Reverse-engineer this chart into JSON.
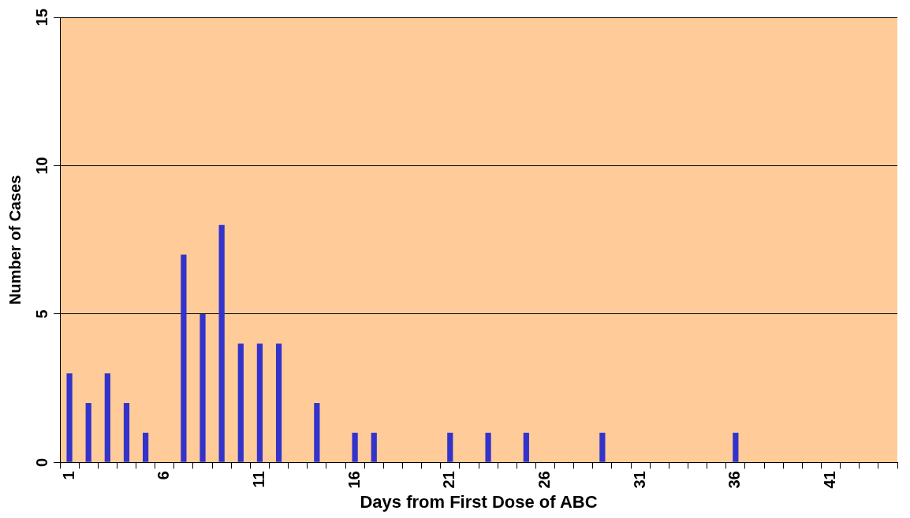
{
  "chart_data": {
    "type": "bar",
    "xlabel": "Days from First Dose of ABC",
    "ylabel": "Number of Cases",
    "categories": [
      "1",
      null,
      null,
      null,
      null,
      "6",
      null,
      null,
      null,
      null,
      "11",
      null,
      null,
      null,
      null,
      "16",
      null,
      null,
      null,
      null,
      "21",
      null,
      null,
      null,
      null,
      "26",
      null,
      null,
      null,
      null,
      "31",
      null,
      null,
      null,
      null,
      "36",
      null,
      null,
      null,
      null,
      "41",
      null,
      null,
      null
    ],
    "values": [
      3,
      2,
      3,
      2,
      1,
      0,
      7,
      5,
      8,
      4,
      4,
      4,
      0,
      2,
      0,
      1,
      1,
      0,
      0,
      0,
      1,
      0,
      1,
      0,
      1,
      0,
      0,
      0,
      1,
      0,
      0,
      0,
      0,
      0,
      0,
      1,
      0,
      0,
      0,
      0,
      0,
      0,
      0,
      0
    ],
    "color": "#3333cc",
    "ylim": [
      0,
      15
    ],
    "yticks": [
      0,
      5,
      10,
      15
    ],
    "grid": "y",
    "legend": false
  }
}
